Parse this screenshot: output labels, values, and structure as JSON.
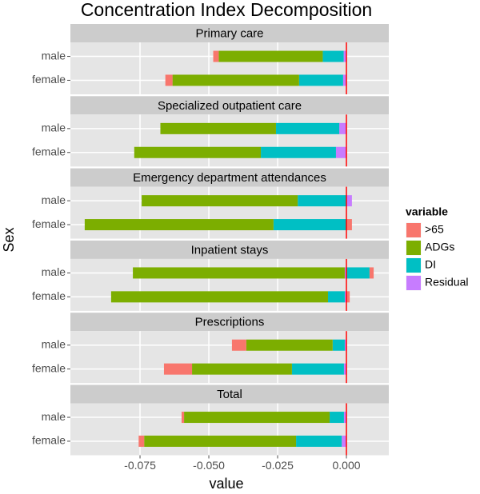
{
  "chart_data": {
    "type": "bar",
    "orientation": "horizontal",
    "stacked": true,
    "title": "Concentration Index Decomposition",
    "xlabel": "value",
    "ylabel": "Sex",
    "legend_title": "variable",
    "legend_position": "right",
    "grid": true,
    "reference_line": {
      "value": 0,
      "color": "#ff0000"
    },
    "xlim": [
      -0.1003,
      0.0154
    ],
    "xticks": [
      -0.075,
      {
        "value": -0.05,
        "label": "-0.050"
      },
      -0.025,
      {
        "value": 0,
        "label": "0.000"
      }
    ],
    "series": [
      {
        "name": ">65",
        "color": "#f8766d"
      },
      {
        "name": "ADGs",
        "color": "#7cae00"
      },
      {
        "name": "DI",
        "color": "#00bfc4"
      },
      {
        "name": "Residual",
        "color": "#c77cff"
      }
    ],
    "facets": [
      {
        "title": "Primary care",
        "categories": [
          "male",
          "female"
        ],
        "series": [
          {
            "values": [
              -0.002,
              -0.0026
            ]
          },
          {
            "values": [
              -0.0378,
              -0.046
            ]
          },
          {
            "values": [
              -0.0076,
              -0.016
            ]
          },
          {
            "values": [
              -0.001,
              -0.0012
            ]
          }
        ]
      },
      {
        "title": "Specialized outpatient care",
        "categories": [
          "male",
          "female"
        ],
        "series": [
          {
            "values": [
              0,
              0
            ]
          },
          {
            "values": [
              -0.042,
              -0.046
            ]
          },
          {
            "values": [
              -0.023,
              -0.0273
            ]
          },
          {
            "values": [
              -0.0026,
              -0.0038
            ]
          }
        ]
      },
      {
        "title": "Emergency department attendances",
        "categories": [
          "male",
          "female"
        ],
        "series": [
          {
            "values": [
              0,
              0.002
            ]
          },
          {
            "values": [
              -0.0567,
              -0.0686
            ]
          },
          {
            "values": [
              -0.0177,
              -0.0265
            ]
          },
          {
            "values": [
              0.002,
              0
            ]
          }
        ]
      },
      {
        "title": "Inpatient stays",
        "categories": [
          "male",
          "female"
        ],
        "series": [
          {
            "values": [
              0.0015,
              0.0012
            ]
          },
          {
            "values": [
              -0.077,
              -0.0788
            ]
          },
          {
            "values": [
              0.0084,
              -0.0061
            ]
          },
          {
            "values": [
              -0.0006,
              -0.0006
            ]
          }
        ]
      },
      {
        "title": "Prescriptions",
        "categories": [
          "male",
          "female"
        ],
        "series": [
          {
            "values": [
              -0.0052,
              -0.0102
            ]
          },
          {
            "values": [
              -0.0314,
              -0.0363
            ]
          },
          {
            "values": [
              -0.0044,
              -0.0189
            ]
          },
          {
            "values": [
              -0.0006,
              -0.0009
            ]
          }
        ]
      },
      {
        "title": "Total",
        "categories": [
          "male",
          "female"
        ],
        "series": [
          {
            "values": [
              -0.0009,
              -0.002
            ]
          },
          {
            "values": [
              -0.0529,
              -0.0552
            ]
          },
          {
            "values": [
              -0.0052,
              -0.0166
            ]
          },
          {
            "values": [
              -0.0009,
              -0.0017
            ]
          }
        ]
      }
    ]
  }
}
